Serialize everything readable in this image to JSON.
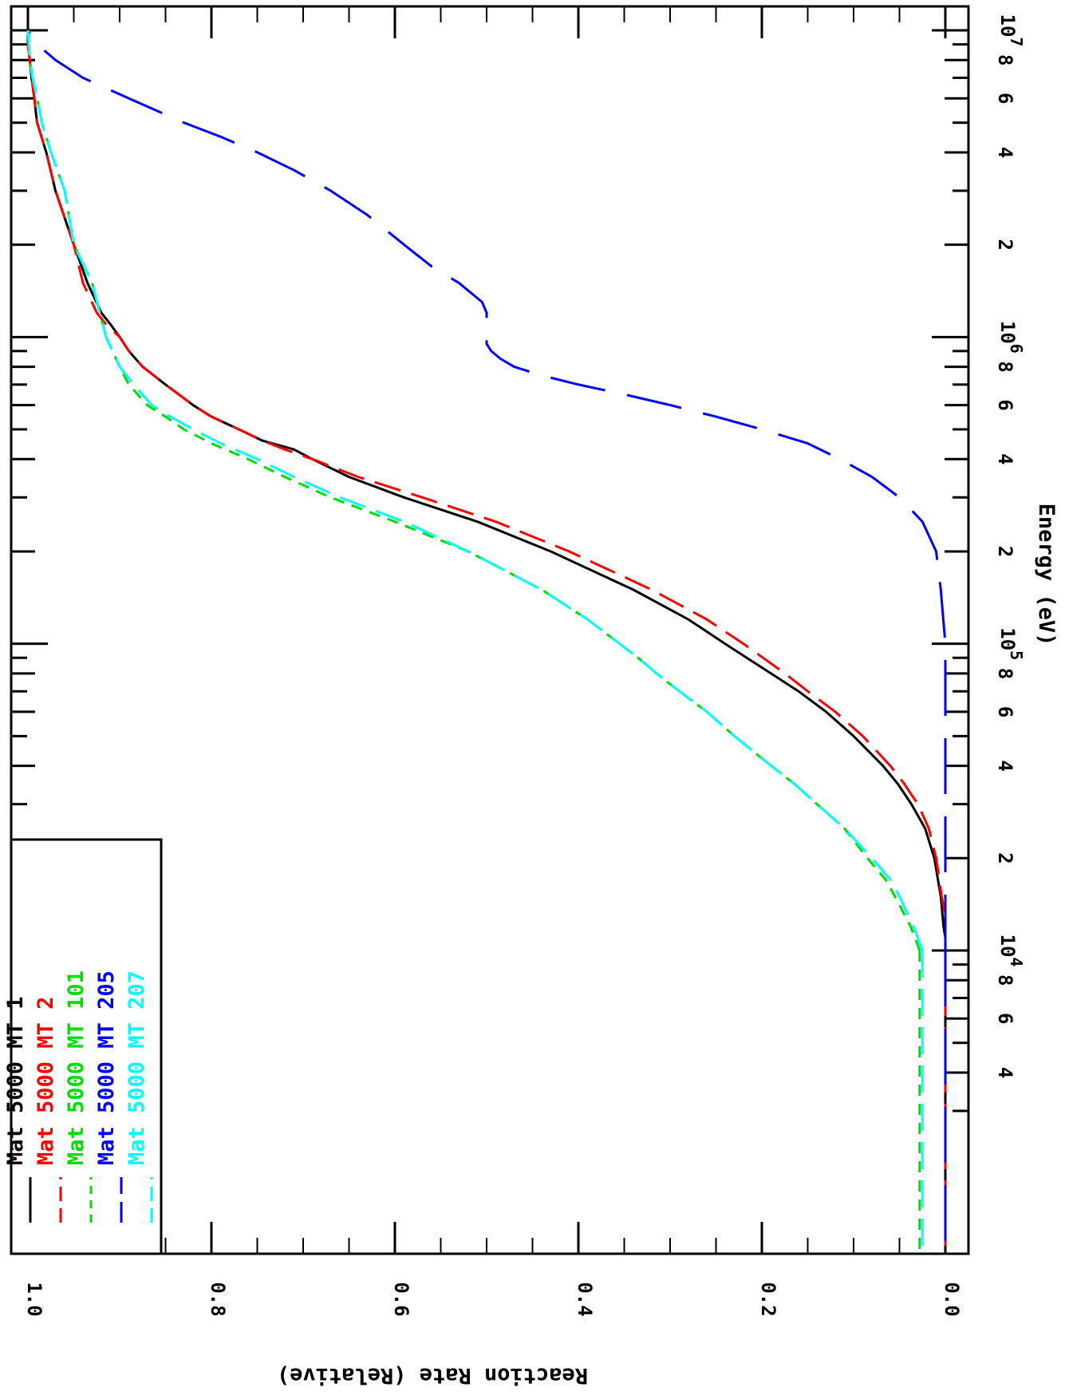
{
  "chart_data": {
    "type": "line",
    "title": "",
    "xlabel": "Energy (eV)",
    "ylabel": "Reaction Rate (Relative)",
    "xscale": "log",
    "xlim": [
      10000,
      10000000
    ],
    "ylim": [
      0.0,
      1.0
    ],
    "grid": false,
    "legend_position": "top-left",
    "orientation": "rotated",
    "x_major_ticks": [
      {
        "value": 10000,
        "label": "10",
        "exp": "4"
      },
      {
        "value": 100000,
        "label": "10",
        "exp": "5"
      },
      {
        "value": 1000000,
        "label": "10",
        "exp": "6"
      },
      {
        "value": 10000000,
        "label": "10",
        "exp": "7"
      }
    ],
    "x_minor_labels": [
      "2",
      "4",
      "6",
      "8"
    ],
    "y_ticks": [
      {
        "value": 0.0,
        "label": "0.0"
      },
      {
        "value": 0.2,
        "label": "0.2"
      },
      {
        "value": 0.4,
        "label": "0.4"
      },
      {
        "value": 0.6,
        "label": "0.6"
      },
      {
        "value": 0.8,
        "label": "0.8"
      },
      {
        "value": 1.0,
        "label": "1.0"
      }
    ],
    "series": [
      {
        "mat_label": "Mat",
        "mat": "5000",
        "mt_label": "MT",
        "mt": "1",
        "color": "#000000",
        "dash": "solid",
        "x": [
          10000,
          11000,
          12000,
          14000,
          15000,
          20000,
          25000,
          30000,
          35000,
          40000,
          50000,
          60000,
          70000,
          80000,
          100000,
          120000,
          150000,
          200000,
          250000,
          300000,
          350000,
          400000,
          430000,
          460000,
          500000,
          550000,
          600000,
          700000,
          800000,
          900000,
          1000000,
          1100000,
          1200000,
          1500000,
          2000000,
          3000000,
          4000000,
          5000000,
          6000000,
          7000000,
          8000000,
          9000000,
          10000000
        ],
        "y": [
          0.0,
          0.0,
          0.002,
          0.004,
          0.005,
          0.012,
          0.022,
          0.037,
          0.052,
          0.068,
          0.1,
          0.13,
          0.16,
          0.19,
          0.24,
          0.28,
          0.34,
          0.43,
          0.51,
          0.59,
          0.65,
          0.69,
          0.71,
          0.745,
          0.77,
          0.8,
          0.82,
          0.85,
          0.875,
          0.89,
          0.9,
          0.91,
          0.92,
          0.935,
          0.95,
          0.97,
          0.98,
          0.99,
          0.993,
          0.996,
          0.998,
          1.0,
          1.0
        ]
      },
      {
        "mat_label": "Mat",
        "mat": "5000",
        "mt_label": "MT",
        "mt": "2",
        "color": "#ff0000",
        "dash": "long",
        "x": [
          10000,
          11000,
          12000,
          14000,
          15000,
          20000,
          25000,
          30000,
          35000,
          40000,
          50000,
          60000,
          70000,
          80000,
          100000,
          120000,
          150000,
          200000,
          250000,
          300000,
          350000,
          400000,
          430000,
          460000,
          500000,
          550000,
          600000,
          700000,
          800000,
          900000,
          1000000,
          1100000,
          1200000,
          1500000,
          2000000,
          3000000,
          4000000,
          5000000,
          6000000,
          7000000,
          8000000,
          9000000,
          10000000
        ],
        "y": [
          0.0,
          0.0,
          0.0,
          0.002,
          0.004,
          0.01,
          0.018,
          0.03,
          0.045,
          0.06,
          0.09,
          0.12,
          0.15,
          0.175,
          0.22,
          0.26,
          0.32,
          0.41,
          0.49,
          0.57,
          0.64,
          0.69,
          0.72,
          0.745,
          0.77,
          0.8,
          0.82,
          0.85,
          0.875,
          0.89,
          0.9,
          0.915,
          0.925,
          0.94,
          0.95,
          0.97,
          0.98,
          0.99,
          0.993,
          0.996,
          0.998,
          1.0,
          1.0
        ]
      },
      {
        "mat_label": "Mat",
        "mat": "5000",
        "mt_label": "MT",
        "mt": "101",
        "color": "#00dd00",
        "dash": "short",
        "x": [
          10000,
          11000,
          12000,
          15000,
          17000,
          20000,
          25000,
          30000,
          35000,
          40000,
          50000,
          60000,
          70000,
          80000,
          90000,
          100000,
          120000,
          150000,
          200000,
          250000,
          300000,
          350000,
          400000,
          450000,
          500000,
          550000,
          600000,
          700000,
          800000,
          1000000,
          1500000,
          2000000,
          3000000,
          4000000,
          5000000,
          6000000,
          7000000,
          8000000,
          10000000
        ],
        "y": [
          0.028,
          0.033,
          0.038,
          0.055,
          0.065,
          0.085,
          0.11,
          0.14,
          0.165,
          0.19,
          0.23,
          0.26,
          0.29,
          0.315,
          0.335,
          0.355,
          0.39,
          0.44,
          0.52,
          0.6,
          0.67,
          0.72,
          0.76,
          0.8,
          0.83,
          0.85,
          0.87,
          0.89,
          0.9,
          0.915,
          0.93,
          0.95,
          0.96,
          0.975,
          0.985,
          0.99,
          0.995,
          0.998,
          1.0
        ]
      },
      {
        "mat_label": "Mat",
        "mat": "5000",
        "mt_label": "MT",
        "mt": "205",
        "color": "#0000ff",
        "dash": "xlong",
        "x": [
          10000,
          20000,
          50000,
          100000,
          150000,
          200000,
          250000,
          300000,
          350000,
          400000,
          450000,
          500000,
          550000,
          600000,
          650000,
          700000,
          750000,
          800000,
          850000,
          900000,
          950000,
          1000000,
          1100000,
          1200000,
          1300000,
          1500000,
          1700000,
          2000000,
          2500000,
          3000000,
          3500000,
          4000000,
          4500000,
          5000000,
          6000000,
          7000000,
          8000000,
          9000000,
          10000000
        ],
        "y": [
          0.0,
          0.0,
          0.0,
          0.0,
          0.005,
          0.01,
          0.025,
          0.05,
          0.08,
          0.115,
          0.15,
          0.2,
          0.25,
          0.3,
          0.35,
          0.4,
          0.44,
          0.47,
          0.485,
          0.495,
          0.5,
          0.5,
          0.5,
          0.5,
          0.505,
          0.53,
          0.56,
          0.59,
          0.63,
          0.67,
          0.71,
          0.75,
          0.79,
          0.83,
          0.89,
          0.94,
          0.97,
          0.99,
          1.0
        ]
      },
      {
        "mat_label": "Mat",
        "mat": "5000",
        "mt_label": "MT",
        "mt": "207",
        "color": "#00ffff",
        "dash": "long",
        "x": [
          10000,
          11000,
          12000,
          15000,
          17000,
          20000,
          25000,
          30000,
          35000,
          40000,
          50000,
          60000,
          70000,
          80000,
          90000,
          100000,
          120000,
          150000,
          200000,
          250000,
          300000,
          350000,
          400000,
          450000,
          500000,
          550000,
          600000,
          700000,
          800000,
          1000000,
          1500000,
          2000000,
          3000000,
          4000000,
          5000000,
          6000000,
          7000000,
          8000000,
          10000000
        ],
        "y": [
          0.025,
          0.03,
          0.035,
          0.05,
          0.06,
          0.08,
          0.11,
          0.14,
          0.165,
          0.19,
          0.23,
          0.26,
          0.29,
          0.315,
          0.335,
          0.355,
          0.39,
          0.44,
          0.52,
          0.59,
          0.66,
          0.71,
          0.75,
          0.79,
          0.82,
          0.845,
          0.865,
          0.885,
          0.9,
          0.915,
          0.93,
          0.95,
          0.96,
          0.975,
          0.985,
          0.99,
          0.995,
          0.998,
          1.0
        ]
      }
    ]
  }
}
